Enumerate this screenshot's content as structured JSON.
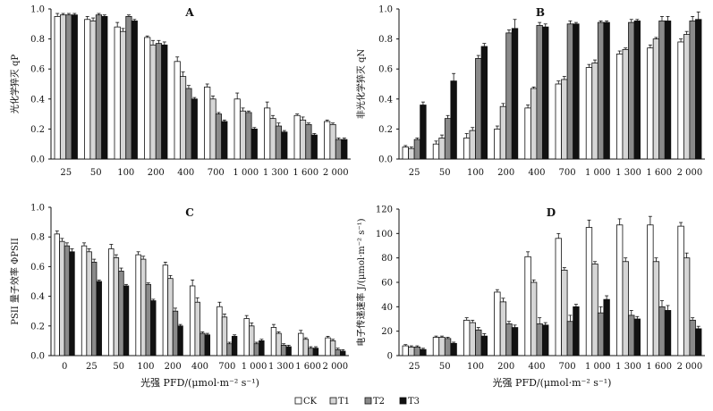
{
  "legend": [
    "CK",
    "T1",
    "T2",
    "T3"
  ],
  "series_colors": [
    "#ffffff",
    "#d6d6d6",
    "#8a8a8a",
    "#111111"
  ],
  "chart_data": [
    {
      "type": "bar",
      "panel": "A",
      "ylabel": "光化学猝灭 qP",
      "xlabel": "",
      "ylim": [
        0,
        1.0
      ],
      "yticks": [
        "0.0",
        "0.2",
        "0.4",
        "0.6",
        "0.8",
        "1.0"
      ],
      "categories": [
        "25",
        "50",
        "100",
        "200",
        "400",
        "700",
        "1 000",
        "1 300",
        "1 600",
        "2 000"
      ],
      "series": [
        {
          "name": "CK",
          "values": [
            0.95,
            0.93,
            0.88,
            0.81,
            0.65,
            0.48,
            0.4,
            0.34,
            0.29,
            0.25
          ],
          "errors": [
            0.02,
            0.02,
            0.03,
            0.01,
            0.03,
            0.02,
            0.04,
            0.04,
            0.01,
            0.01
          ]
        },
        {
          "name": "T1",
          "values": [
            0.96,
            0.92,
            0.85,
            0.76,
            0.55,
            0.4,
            0.32,
            0.27,
            0.26,
            0.23
          ],
          "errors": [
            0.01,
            0.02,
            0.02,
            0.03,
            0.03,
            0.02,
            0.02,
            0.02,
            0.02,
            0.01
          ]
        },
        {
          "name": "T2",
          "values": [
            0.96,
            0.96,
            0.95,
            0.77,
            0.47,
            0.3,
            0.31,
            0.22,
            0.23,
            0.13
          ],
          "errors": [
            0.01,
            0.01,
            0.01,
            0.02,
            0.02,
            0.01,
            0.01,
            0.02,
            0.01,
            0.01
          ]
        },
        {
          "name": "T3",
          "values": [
            0.96,
            0.95,
            0.92,
            0.76,
            0.4,
            0.25,
            0.2,
            0.18,
            0.16,
            0.13
          ],
          "errors": [
            0.01,
            0.01,
            0.01,
            0.02,
            0.01,
            0.01,
            0.01,
            0.01,
            0.01,
            0.01
          ]
        }
      ]
    },
    {
      "type": "bar",
      "panel": "B",
      "ylabel": "非光化学猝灭 qN",
      "xlabel": "",
      "ylim": [
        0,
        1.0
      ],
      "yticks": [
        "0.0",
        "0.2",
        "0.4",
        "0.6",
        "0.8",
        "1.0"
      ],
      "categories": [
        "25",
        "50",
        "100",
        "200",
        "400",
        "700",
        "1 000",
        "1 300",
        "1 600",
        "2 000"
      ],
      "series": [
        {
          "name": "CK",
          "values": [
            0.08,
            0.1,
            0.14,
            0.2,
            0.34,
            0.5,
            0.61,
            0.7,
            0.74,
            0.78
          ],
          "errors": [
            0.01,
            0.02,
            0.03,
            0.02,
            0.02,
            0.02,
            0.02,
            0.02,
            0.02,
            0.02
          ]
        },
        {
          "name": "T1",
          "values": [
            0.07,
            0.14,
            0.19,
            0.35,
            0.47,
            0.53,
            0.64,
            0.73,
            0.8,
            0.83
          ],
          "errors": [
            0.01,
            0.02,
            0.02,
            0.02,
            0.01,
            0.02,
            0.02,
            0.01,
            0.01,
            0.02
          ]
        },
        {
          "name": "T2",
          "values": [
            0.13,
            0.27,
            0.67,
            0.84,
            0.89,
            0.9,
            0.91,
            0.91,
            0.92,
            0.92
          ],
          "errors": [
            0.01,
            0.02,
            0.02,
            0.02,
            0.02,
            0.02,
            0.01,
            0.02,
            0.03,
            0.03
          ]
        },
        {
          "name": "T3",
          "values": [
            0.36,
            0.52,
            0.75,
            0.87,
            0.88,
            0.9,
            0.91,
            0.92,
            0.92,
            0.93
          ],
          "errors": [
            0.02,
            0.05,
            0.02,
            0.06,
            0.02,
            0.01,
            0.01,
            0.01,
            0.03,
            0.05
          ]
        }
      ]
    },
    {
      "type": "bar",
      "panel": "C",
      "ylabel": "PSII 量子效率 ΦPSII",
      "xlabel": "光强 PFD/(μmol·m⁻² s⁻¹)",
      "ylim": [
        0,
        1.0
      ],
      "yticks": [
        "0.0",
        "0.2",
        "0.4",
        "0.6",
        "0.8",
        "1.0"
      ],
      "categories": [
        "0",
        "25",
        "50",
        "100",
        "200",
        "400",
        "700",
        "1 000",
        "1 300",
        "1 600",
        "2 000"
      ],
      "series": [
        {
          "name": "CK",
          "values": [
            0.82,
            0.74,
            0.72,
            0.68,
            0.61,
            0.47,
            0.33,
            0.25,
            0.19,
            0.15,
            0.12
          ],
          "errors": [
            0.02,
            0.02,
            0.03,
            0.02,
            0.02,
            0.04,
            0.03,
            0.02,
            0.02,
            0.02,
            0.01
          ]
        },
        {
          "name": "T1",
          "values": [
            0.77,
            0.7,
            0.66,
            0.65,
            0.52,
            0.36,
            0.26,
            0.2,
            0.15,
            0.11,
            0.1
          ],
          "errors": [
            0.02,
            0.02,
            0.02,
            0.02,
            0.02,
            0.03,
            0.02,
            0.02,
            0.01,
            0.01,
            0.01
          ]
        },
        {
          "name": "T2",
          "values": [
            0.74,
            0.63,
            0.57,
            0.48,
            0.3,
            0.15,
            0.08,
            0.08,
            0.07,
            0.05,
            0.04
          ],
          "errors": [
            0.02,
            0.02,
            0.02,
            0.01,
            0.02,
            0.01,
            0.01,
            0.01,
            0.01,
            0.01,
            0.01
          ]
        },
        {
          "name": "T3",
          "values": [
            0.7,
            0.5,
            0.47,
            0.37,
            0.2,
            0.14,
            0.13,
            0.1,
            0.06,
            0.05,
            0.03
          ],
          "errors": [
            0.02,
            0.01,
            0.01,
            0.01,
            0.01,
            0.01,
            0.01,
            0.01,
            0.01,
            0.01,
            0.01
          ]
        }
      ]
    },
    {
      "type": "bar",
      "panel": "D",
      "ylabel": "电子传递速率 J/(μmol·m⁻² s⁻¹)",
      "xlabel": "光强 PFD/(μmol·m⁻² s⁻¹)",
      "ylim": [
        0,
        120
      ],
      "yticks": [
        "0",
        "20",
        "40",
        "60",
        "80",
        "100",
        "120"
      ],
      "categories": [
        "25",
        "50",
        "100",
        "200",
        "400",
        "700",
        "1 000",
        "1 300",
        "1 600",
        "2 000"
      ],
      "series": [
        {
          "name": "CK",
          "values": [
            8,
            15,
            29,
            52,
            81,
            96,
            105,
            107,
            107,
            106
          ],
          "errors": [
            1,
            1,
            2,
            2,
            4,
            4,
            6,
            5,
            7,
            3
          ]
        },
        {
          "name": "T1",
          "values": [
            7,
            15,
            27,
            44,
            60,
            70,
            75,
            77,
            77,
            80
          ],
          "errors": [
            1,
            1,
            2,
            3,
            2,
            2,
            2,
            3,
            3,
            4
          ]
        },
        {
          "name": "T2",
          "values": [
            7,
            14,
            21,
            26,
            26,
            28,
            35,
            33,
            40,
            29
          ],
          "errors": [
            1,
            1,
            2,
            2,
            5,
            5,
            5,
            4,
            5,
            2
          ]
        },
        {
          "name": "T3",
          "values": [
            5,
            10,
            16,
            23,
            25,
            40,
            46,
            30,
            37,
            22
          ],
          "errors": [
            1,
            1,
            2,
            2,
            2,
            2,
            3,
            2,
            4,
            2
          ]
        }
      ]
    }
  ]
}
